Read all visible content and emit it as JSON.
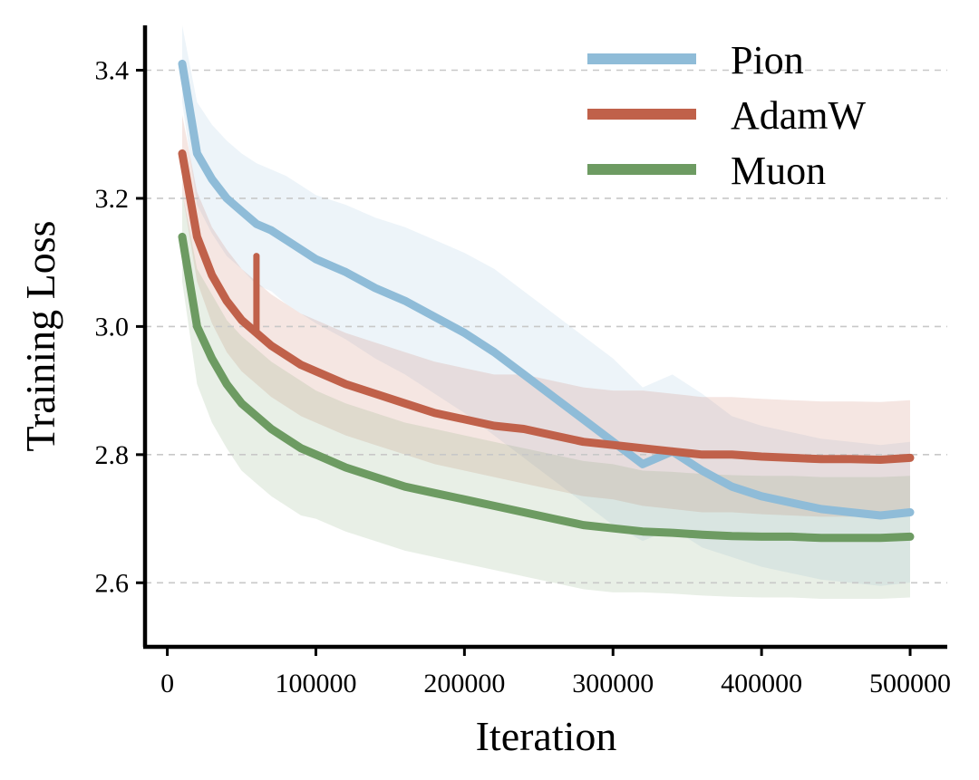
{
  "chart_data": {
    "type": "line",
    "title": "",
    "xlabel": "Iteration",
    "ylabel": "Training Loss",
    "xlim": [
      -15000,
      525000
    ],
    "ylim": [
      2.5,
      3.47
    ],
    "xticks": [
      0,
      100000,
      200000,
      300000,
      400000,
      500000
    ],
    "xtick_labels": [
      "0",
      "100000",
      "200000",
      "300000",
      "400000",
      "500000"
    ],
    "yticks": [
      2.6,
      2.8,
      3.0,
      3.2,
      3.4
    ],
    "ytick_labels": [
      "2.6",
      "2.8",
      "3.0",
      "3.2",
      "3.4"
    ],
    "grid": "y-dashed",
    "legend": "top-right",
    "x": [
      10000,
      20000,
      30000,
      40000,
      50000,
      60000,
      70000,
      80000,
      90000,
      100000,
      120000,
      140000,
      160000,
      180000,
      200000,
      220000,
      240000,
      260000,
      280000,
      300000,
      320000,
      340000,
      360000,
      380000,
      400000,
      420000,
      440000,
      460000,
      480000,
      500000
    ],
    "series": [
      {
        "name": "Pion",
        "color": "#8fbcd8",
        "values": [
          3.41,
          3.27,
          3.23,
          3.2,
          3.18,
          3.16,
          3.15,
          3.135,
          3.12,
          3.105,
          3.085,
          3.06,
          3.04,
          3.015,
          2.99,
          2.96,
          2.925,
          2.89,
          2.855,
          2.82,
          2.785,
          2.805,
          2.775,
          2.75,
          2.735,
          2.725,
          2.715,
          2.71,
          2.705,
          2.71
        ],
        "band": [
          0.06,
          0.08,
          0.085,
          0.09,
          0.09,
          0.095,
          0.095,
          0.1,
          0.1,
          0.1,
          0.105,
          0.11,
          0.115,
          0.12,
          0.125,
          0.13,
          0.13,
          0.13,
          0.13,
          0.13,
          0.12,
          0.12,
          0.12,
          0.11,
          0.11,
          0.11,
          0.11,
          0.11,
          0.11,
          0.11
        ]
      },
      {
        "name": "AdamW",
        "color": "#c0614a",
        "values": [
          3.27,
          3.14,
          3.08,
          3.04,
          3.01,
          2.99,
          2.97,
          2.955,
          2.94,
          2.93,
          2.91,
          2.895,
          2.88,
          2.865,
          2.855,
          2.845,
          2.84,
          2.83,
          2.82,
          2.815,
          2.81,
          2.805,
          2.8,
          2.8,
          2.797,
          2.795,
          2.793,
          2.793,
          2.792,
          2.795
        ],
        "band": [
          0.06,
          0.07,
          0.075,
          0.08,
          0.08,
          0.08,
          0.08,
          0.08,
          0.08,
          0.08,
          0.08,
          0.08,
          0.08,
          0.08,
          0.08,
          0.08,
          0.085,
          0.085,
          0.085,
          0.085,
          0.09,
          0.09,
          0.09,
          0.09,
          0.09,
          0.09,
          0.09,
          0.09,
          0.09,
          0.09
        ]
      },
      {
        "name": "Muon",
        "color": "#6d9b62",
        "values": [
          3.14,
          3.0,
          2.95,
          2.91,
          2.88,
          2.86,
          2.84,
          2.825,
          2.81,
          2.8,
          2.78,
          2.765,
          2.75,
          2.74,
          2.73,
          2.72,
          2.71,
          2.7,
          2.69,
          2.685,
          2.68,
          2.678,
          2.675,
          2.673,
          2.672,
          2.672,
          2.67,
          2.67,
          2.67,
          2.672
        ],
        "band": [
          0.07,
          0.09,
          0.1,
          0.1,
          0.105,
          0.105,
          0.105,
          0.105,
          0.105,
          0.1,
          0.1,
          0.1,
          0.1,
          0.1,
          0.1,
          0.1,
          0.1,
          0.1,
          0.1,
          0.1,
          0.095,
          0.095,
          0.095,
          0.095,
          0.095,
          0.095,
          0.095,
          0.095,
          0.095,
          0.095
        ]
      }
    ],
    "annotations": [
      {
        "series": "AdamW",
        "x": 60000,
        "from": 2.99,
        "to": 3.11
      }
    ]
  }
}
